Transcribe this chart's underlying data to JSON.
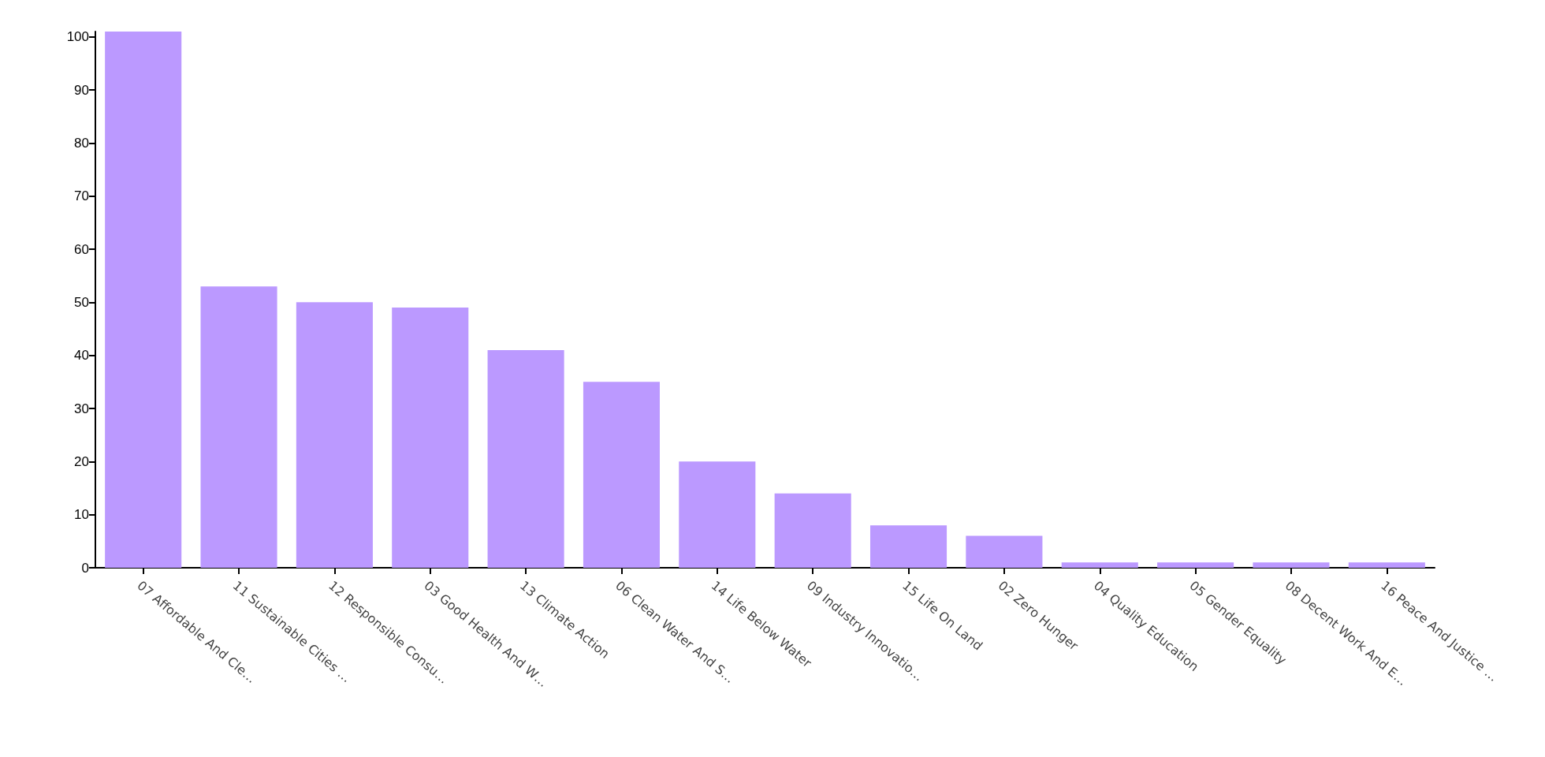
{
  "chart_data": {
    "type": "bar",
    "categories": [
      "07 Affordable And Cle…",
      "11 Sustainable Cities …",
      "12 Responsible Consu…",
      "03 Good Health And W…",
      "13 Climate Action",
      "06 Clean Water And S…",
      "14 Life Below Water",
      "09 Industry Innovatio…",
      "15 Life On Land",
      "02 Zero Hunger",
      "04 Quality Education",
      "05 Gender Equality",
      "08 Decent Work And E…",
      "16 Peace And Justice …"
    ],
    "values": [
      101,
      53,
      50,
      49,
      41,
      35,
      20,
      14,
      8,
      6,
      1,
      1,
      1,
      1
    ],
    "color": "#bb99ff",
    "ylim": [
      0,
      101
    ],
    "yticks": [
      0,
      10,
      20,
      30,
      40,
      50,
      60,
      70,
      80,
      90,
      100
    ],
    "grid": false
  }
}
